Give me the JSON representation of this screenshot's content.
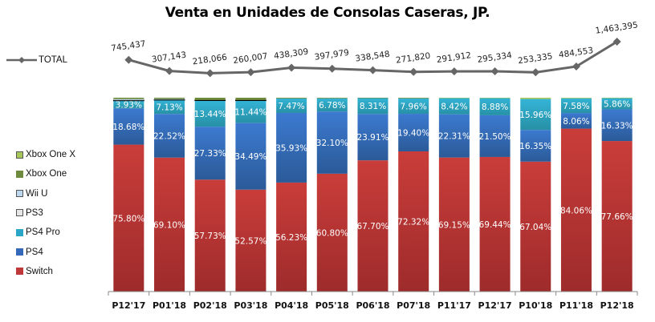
{
  "chart_data": {
    "type": "bar",
    "stacked": "percent",
    "title": "Venta en Unidades de Consolas Caseras, JP.",
    "xlabel": "",
    "ylabel": "",
    "ylim": [
      0,
      100
    ],
    "grid": false,
    "legend_position": "left",
    "categories": [
      "P12'17",
      "P01'18",
      "P02'18",
      "P03'18",
      "P04'18",
      "P05'18",
      "P06'18",
      "P07'18",
      "P11'17",
      "P12'17",
      "P10'18",
      "P11'18",
      "P12'18"
    ],
    "series": [
      {
        "name": "Switch",
        "color": "#C0393A",
        "values": [
          75.8,
          69.1,
          57.73,
          52.57,
          56.23,
          60.8,
          67.7,
          72.32,
          69.15,
          69.44,
          67.04,
          84.06,
          77.66
        ],
        "labels": [
          "75.80%",
          "69.10%",
          "57.73%",
          "52.57%",
          "56.23%",
          "60.80%",
          "67.70%",
          "72.32%",
          "69.15%",
          "69.44%",
          "67.04%",
          "84.06%",
          "77.66%"
        ]
      },
      {
        "name": "PS4",
        "color": "#3369B8",
        "values": [
          18.68,
          22.52,
          27.33,
          34.49,
          35.93,
          32.1,
          23.91,
          19.4,
          22.31,
          21.5,
          16.35,
          8.06,
          16.33
        ],
        "labels": [
          "18.68%",
          "22.52%",
          "27.33%",
          "34.49%",
          "35.93%",
          "32.10%",
          "23.91%",
          "19.40%",
          "22.31%",
          "21.50%",
          "16.35%",
          "8.06%",
          "16.33%"
        ]
      },
      {
        "name": "PS4 Pro",
        "color": "#2AA6C6",
        "values": [
          3.93,
          7.13,
          13.44,
          11.44,
          7.47,
          6.78,
          8.31,
          7.96,
          8.42,
          8.88,
          15.96,
          7.58,
          5.86
        ],
        "labels": [
          "3.93%",
          "7.13%",
          "13.44%",
          "11.44%",
          "7.47%",
          "6.78%",
          "8.31%",
          "7.96%",
          "8.42%",
          "8.88%",
          "15.96%",
          "7.58%",
          "5.86%"
        ]
      },
      {
        "name": "PS3",
        "color": "#E6E6E6",
        "values": [
          0.4,
          0.3,
          0.3,
          0.3,
          0.0,
          0.0,
          0.0,
          0.0,
          0.0,
          0.0,
          0.0,
          0.0,
          0.0
        ],
        "labels": []
      },
      {
        "name": "Wii U",
        "color": "#BDD7EE",
        "values": [
          0.5,
          0.3,
          0.0,
          0.0,
          0.0,
          0.0,
          0.0,
          0.0,
          0.0,
          0.0,
          0.0,
          0.0,
          0.0
        ],
        "labels": []
      },
      {
        "name": "Xbox One",
        "color": "#6E8B3D",
        "values": [
          0.69,
          0.64,
          1.2,
          1.2,
          0.37,
          0.32,
          0.08,
          0.32,
          0.0,
          0.0,
          0.0,
          0.0,
          0.0
        ],
        "labels": []
      },
      {
        "name": "Xbox One X",
        "color": "#A8C75A",
        "values": [
          0.0,
          0.0,
          0.0,
          0.0,
          0.0,
          0.0,
          0.0,
          0.0,
          0.12,
          0.18,
          0.65,
          0.3,
          0.15
        ],
        "labels": []
      }
    ],
    "line_series": {
      "name": "TOTAL",
      "color": "#666666",
      "values": [
        745437,
        307143,
        218066,
        260007,
        438309,
        397979,
        338548,
        271820,
        291912,
        295334,
        253335,
        484553,
        1463395
      ],
      "labels": [
        "745,437",
        "307,143",
        "218,066",
        "260,007",
        "438,309",
        "397,979",
        "338,548",
        "271,820",
        "291,912",
        "295,334",
        "253,335",
        "484,553",
        "1,463,395"
      ]
    },
    "legend": [
      "Xbox One X",
      "Xbox One",
      "Wii U",
      "PS3",
      "PS4 Pro",
      "PS4",
      "Switch"
    ]
  }
}
